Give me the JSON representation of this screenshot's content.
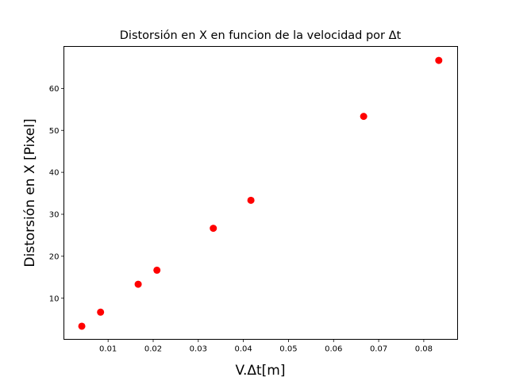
{
  "chart_data": {
    "type": "scatter",
    "title": "Distorsión en X en funcion de la velocidad por Δt",
    "xlabel": "V.Δt[m]",
    "ylabel": "Distorsión en X [Pixel]",
    "xlim": [
      0.0002,
      0.0875
    ],
    "ylim": [
      0.2,
      70.0
    ],
    "xticks": [
      0.01,
      0.02,
      0.03,
      0.04,
      0.05,
      0.06,
      0.07,
      0.08
    ],
    "xtick_labels": [
      "0.01",
      "0.02",
      "0.03",
      "0.04",
      "0.05",
      "0.06",
      "0.07",
      "0.08"
    ],
    "yticks": [
      10,
      20,
      30,
      40,
      50,
      60
    ],
    "ytick_labels": [
      "10",
      "20",
      "30",
      "40",
      "50",
      "60"
    ],
    "grid": false,
    "legend": "none",
    "marker_color": "#ff0000",
    "series": [
      {
        "x": [
          0.00417,
          0.00833,
          0.01667,
          0.02083,
          0.03333,
          0.04167,
          0.06667,
          0.08333
        ],
        "y": [
          3.33,
          6.67,
          13.33,
          16.67,
          26.67,
          33.33,
          53.33,
          66.67
        ]
      }
    ]
  }
}
